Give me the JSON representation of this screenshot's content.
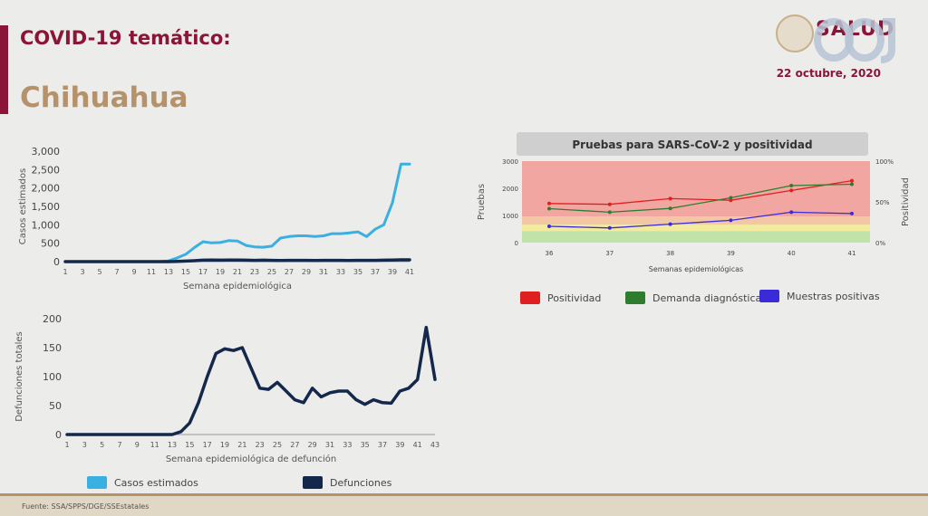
{
  "header": {
    "title": "COVID-19 temático:",
    "subtitle": "Chihuahua",
    "date": "22 octubre, 2020",
    "brand": "SALUD"
  },
  "footer": {
    "source": "Fuente: SSA/SPPS/DGE/SSEstatales"
  },
  "colors": {
    "accent": "#8a1538",
    "gold": "#b5926a",
    "casos": "#3ab0e2",
    "defunciones": "#14284b",
    "positividad": "#e02020",
    "demanda": "#2e7d2e",
    "muestras": "#3a2ad8"
  },
  "chart_data": [
    {
      "id": "casos",
      "type": "line",
      "ylabel": "Casos estimados",
      "xlabel": "Semana epidemiológica",
      "x": [
        1,
        2,
        3,
        4,
        5,
        6,
        7,
        8,
        9,
        10,
        11,
        12,
        13,
        14,
        15,
        16,
        17,
        18,
        19,
        20,
        21,
        22,
        23,
        24,
        25,
        26,
        27,
        28,
        29,
        30,
        31,
        32,
        33,
        34,
        35,
        36,
        37,
        38,
        39,
        40,
        41
      ],
      "xticks": [
        "1",
        "3",
        "5",
        "7",
        "9",
        "11",
        "13",
        "15",
        "17",
        "19",
        "21",
        "23",
        "25",
        "27",
        "29",
        "31",
        "33",
        "35",
        "37",
        "39",
        "41"
      ],
      "ylim": [
        0,
        3000
      ],
      "yticks": [
        "0",
        "500",
        "1,000",
        "1,500",
        "2,000",
        "2,500",
        "3,000"
      ],
      "series": [
        {
          "name": "Casos estimados",
          "values": [
            0,
            0,
            0,
            0,
            0,
            0,
            0,
            0,
            0,
            0,
            0,
            0,
            20,
            100,
            200,
            380,
            540,
            510,
            520,
            570,
            560,
            440,
            400,
            390,
            420,
            640,
            680,
            700,
            700,
            680,
            700,
            760,
            760,
            780,
            810,
            680,
            880,
            1000,
            1600,
            2650,
            2650
          ]
        },
        {
          "name": "Defunciones",
          "values": [
            0,
            0,
            0,
            0,
            0,
            0,
            0,
            0,
            0,
            0,
            0,
            0,
            0,
            5,
            15,
            25,
            40,
            45,
            40,
            45,
            45,
            40,
            35,
            40,
            35,
            30,
            35,
            35,
            35,
            30,
            35,
            35,
            35,
            30,
            35,
            35,
            35,
            40,
            45,
            50,
            50
          ]
        }
      ]
    },
    {
      "id": "defunciones",
      "type": "line",
      "ylabel": "Defunciones totales",
      "xlabel": "Semana epidemiológica de defunción",
      "x": [
        1,
        2,
        3,
        4,
        5,
        6,
        7,
        8,
        9,
        10,
        11,
        12,
        13,
        14,
        15,
        16,
        17,
        18,
        19,
        20,
        21,
        22,
        23,
        24,
        25,
        26,
        27,
        28,
        29,
        30,
        31,
        32,
        33,
        34,
        35,
        36,
        37,
        38,
        39,
        40,
        41,
        42,
        43
      ],
      "xticks": [
        "1",
        "3",
        "5",
        "7",
        "9",
        "11",
        "13",
        "15",
        "17",
        "19",
        "21",
        "23",
        "25",
        "27",
        "29",
        "31",
        "33",
        "35",
        "37",
        "39",
        "41",
        "43"
      ],
      "ylim": [
        0,
        200
      ],
      "yticks": [
        "0",
        "50",
        "100",
        "150",
        "200"
      ],
      "series": [
        {
          "name": "Defunciones",
          "values": [
            0,
            0,
            0,
            0,
            0,
            0,
            0,
            0,
            0,
            0,
            0,
            0,
            0,
            5,
            20,
            55,
            100,
            140,
            148,
            145,
            150,
            115,
            80,
            78,
            90,
            75,
            60,
            55,
            80,
            65,
            72,
            75,
            75,
            60,
            52,
            60,
            55,
            54,
            75,
            80,
            95,
            185,
            95
          ]
        }
      ]
    },
    {
      "id": "pruebas",
      "type": "line",
      "title": "Pruebas para SARS-CoV-2 y positividad",
      "ylabel": "Pruebas",
      "y2label": "Positividad",
      "xlabel": "Semanas epidemiológicas",
      "categories": [
        "36",
        "37",
        "38",
        "39",
        "40",
        "41"
      ],
      "ylim": [
        0,
        3000
      ],
      "yticks": [
        "0",
        "1000",
        "2000",
        "3000"
      ],
      "y2ticks": [
        "0%",
        "50%",
        "100%"
      ],
      "series": [
        {
          "name": "Positividad",
          "axis": "y2",
          "values": [
            48,
            47,
            54,
            52,
            64,
            76
          ]
        },
        {
          "name": "Demanda diagnóstica",
          "axis": "y",
          "values": [
            1250,
            1120,
            1260,
            1650,
            2100,
            2150
          ]
        },
        {
          "name": "Muestras positivas",
          "axis": "y",
          "values": [
            600,
            540,
            680,
            820,
            1120,
            1070
          ]
        }
      ]
    }
  ]
}
